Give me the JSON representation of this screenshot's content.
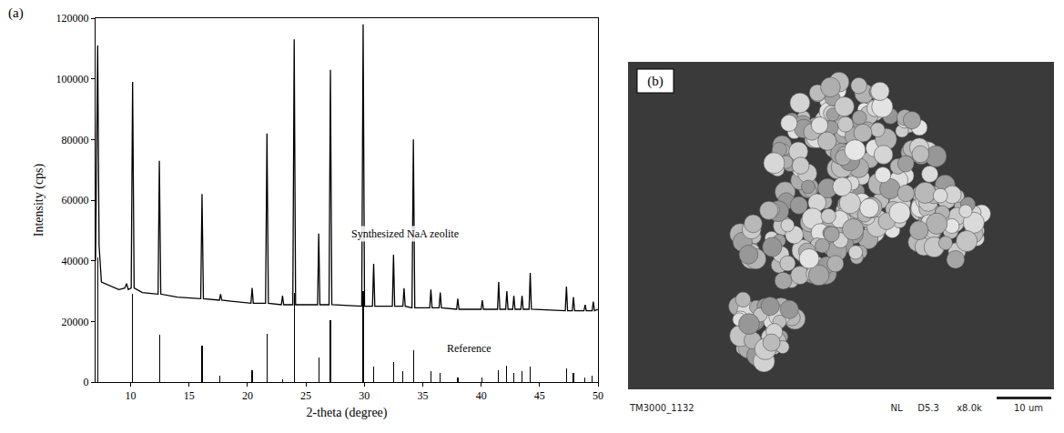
{
  "chart_data": {
    "type": "line",
    "panel_label": "(a)",
    "x_label": "2-theta (degree)",
    "y_label": "Intensity (cps)",
    "xlim": [
      7,
      50
    ],
    "xticks": [
      10,
      15,
      20,
      25,
      30,
      35,
      40,
      45,
      50
    ],
    "ylim": [
      0,
      120000
    ],
    "yticks": [
      0,
      20000,
      40000,
      60000,
      80000,
      100000,
      120000
    ],
    "grid": false,
    "tick_labels": true,
    "series": [
      {
        "type": "line",
        "color": "#000000",
        "x": [
          7.0,
          7.1,
          7.18,
          7.3,
          7.5,
          9.0,
          9.5,
          9.65,
          9.8,
          10.05,
          10.17,
          10.3,
          11.0,
          12.35,
          12.46,
          12.58,
          14.0,
          16.0,
          16.11,
          16.23,
          17.6,
          17.7,
          17.8,
          20.3,
          20.4,
          20.5,
          21.55,
          21.67,
          21.79,
          22.9,
          23.0,
          23.1,
          23.88,
          24.0,
          24.12,
          26.0,
          26.1,
          26.2,
          26.98,
          27.1,
          27.22,
          29.78,
          29.9,
          30.02,
          30.7,
          30.8,
          30.9,
          32.4,
          32.5,
          32.6,
          33.3,
          33.4,
          33.5,
          34.08,
          34.2,
          34.32,
          35.6,
          35.7,
          35.8,
          36.4,
          36.5,
          36.6,
          37.9,
          38.0,
          38.1,
          40.0,
          40.1,
          40.2,
          41.4,
          41.5,
          41.6,
          42.1,
          42.2,
          42.3,
          42.7,
          42.8,
          42.9,
          43.4,
          43.5,
          43.6,
          44.1,
          44.2,
          44.3,
          47.2,
          47.3,
          47.4,
          47.8,
          47.9,
          48.0,
          48.8,
          48.9,
          49.0,
          49.5,
          49.6,
          49.7,
          50.0
        ],
        "values": [
          40000,
          80000,
          111000,
          45000,
          33000,
          30500,
          31000,
          32500,
          30500,
          31000,
          99000,
          31000,
          29500,
          29000,
          73000,
          29000,
          28000,
          27500,
          62000,
          27500,
          27000,
          29000,
          27000,
          26000,
          31000,
          26000,
          26000,
          82000,
          26000,
          25500,
          28500,
          25500,
          25500,
          113000,
          25500,
          25500,
          49000,
          25500,
          25500,
          103000,
          25500,
          25000,
          118000,
          25000,
          25000,
          39000,
          25000,
          25000,
          42000,
          25000,
          25000,
          31000,
          25000,
          24500,
          80000,
          24500,
          24500,
          30500,
          24500,
          24500,
          29500,
          24500,
          24000,
          27500,
          24000,
          24000,
          27000,
          24000,
          24000,
          33000,
          24000,
          24000,
          30000,
          24000,
          24000,
          28500,
          24000,
          24000,
          28500,
          24000,
          24000,
          36000,
          24000,
          23500,
          31500,
          23500,
          23500,
          28000,
          23500,
          23500,
          25500,
          23500,
          23500,
          26500,
          23500,
          24000
        ]
      },
      {
        "type": "bar",
        "color": "#000000",
        "x": [
          7.18,
          10.17,
          12.46,
          16.11,
          17.6,
          20.4,
          21.67,
          23.0,
          24.0,
          26.1,
          27.1,
          29.9,
          30.8,
          32.5,
          33.3,
          34.2,
          35.7,
          36.5,
          38.0,
          40.1,
          41.5,
          42.2,
          42.8,
          43.5,
          44.2,
          47.3,
          47.9,
          48.9,
          49.5
        ],
        "values": [
          41000,
          29000,
          15500,
          12000,
          2000,
          4000,
          16000,
          1000,
          29500,
          8000,
          20500,
          30000,
          5000,
          6500,
          3500,
          10500,
          3500,
          3000,
          1500,
          1500,
          4000,
          5500,
          3000,
          3500,
          5000,
          4500,
          3000,
          1500,
          2000
        ]
      }
    ],
    "annotations": [
      {
        "text": "Synthesized NaA zeolite",
        "x": 33.5,
        "y": 49000
      },
      {
        "text": "Reference",
        "x": 39,
        "y": 11000
      }
    ]
  },
  "image_panel": {
    "panel_label": "(b)",
    "caption_left": "TM3000_1132",
    "caption_right": [
      "NL",
      "D5.3",
      "x8.0k",
      "10 um"
    ]
  }
}
